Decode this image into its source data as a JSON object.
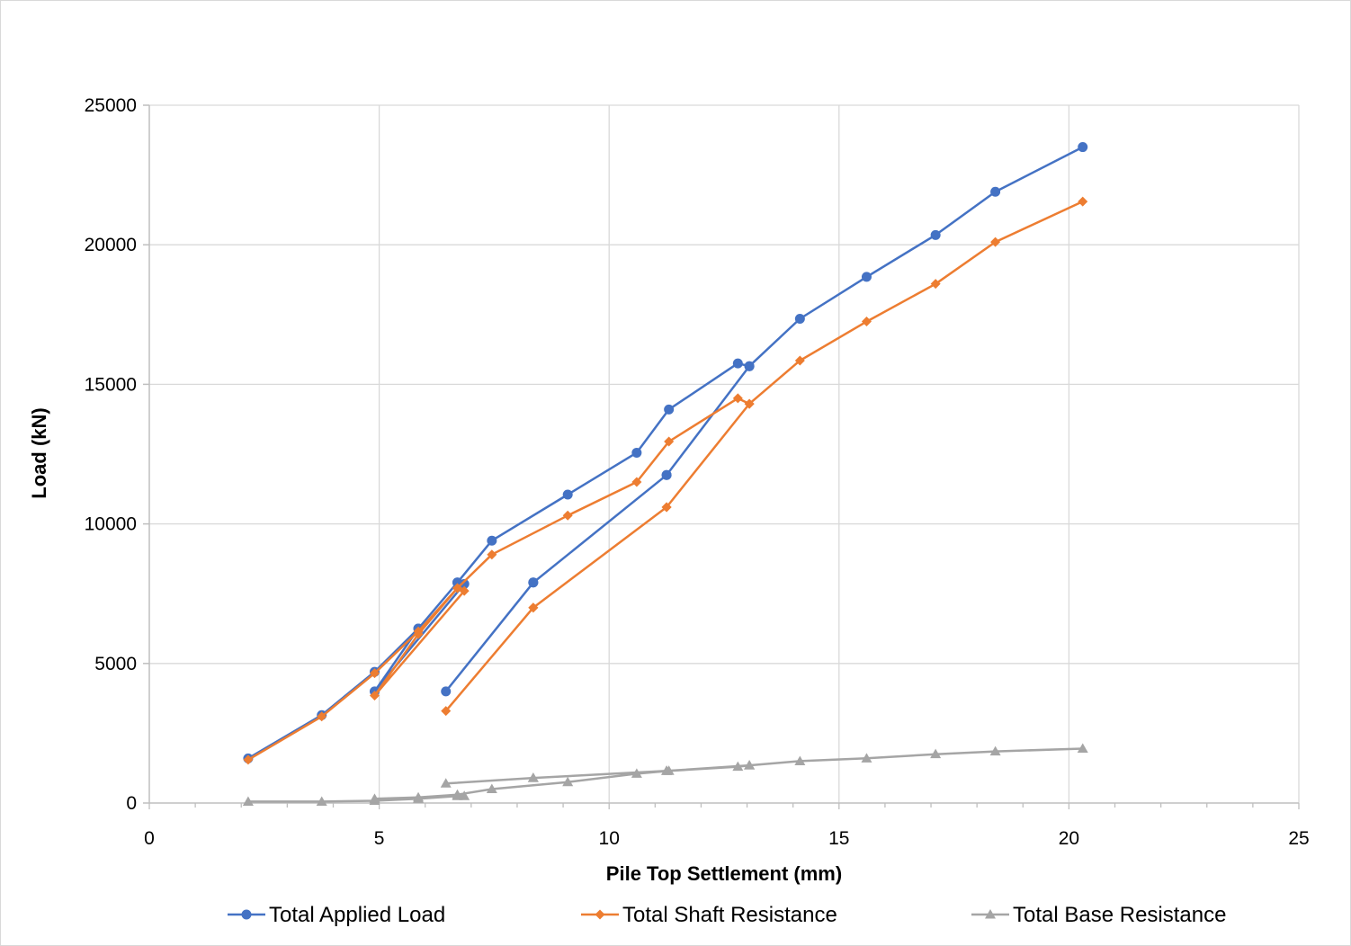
{
  "chart_data": {
    "type": "line",
    "title": "",
    "xlabel": "Pile Top Settlement (mm)",
    "ylabel": "Load (kN)",
    "xlim": [
      0,
      25
    ],
    "ylim": [
      0,
      25000
    ],
    "x_ticks": [
      0,
      5,
      10,
      15,
      20,
      25
    ],
    "y_ticks": [
      0,
      5000,
      10000,
      15000,
      20000,
      25000
    ],
    "x_tick_labels": [
      "0",
      "5",
      "10",
      "15",
      "20",
      "25"
    ],
    "y_tick_labels": [
      "0",
      "5000",
      "10000",
      "15000",
      "20000",
      "25000"
    ],
    "x_minor_step": 1,
    "grid": true,
    "legend_position": "bottom",
    "series": [
      {
        "name": "Total Applied Load",
        "color": "#4472C4",
        "marker": "circle",
        "points": [
          [
            2.15,
            1600
          ],
          [
            3.75,
            3150
          ],
          [
            4.9,
            4700
          ],
          [
            5.85,
            6250
          ],
          [
            6.7,
            7900
          ],
          [
            6.85,
            7850
          ],
          [
            4.9,
            4000
          ],
          [
            5.85,
            6250
          ],
          [
            6.7,
            7900
          ],
          [
            7.45,
            9400
          ],
          [
            9.1,
            11050
          ],
          [
            10.6,
            12550
          ],
          [
            11.3,
            14100
          ],
          [
            12.8,
            15750
          ],
          [
            13.05,
            15650
          ],
          [
            11.25,
            11750
          ],
          [
            8.35,
            7900
          ],
          [
            6.45,
            4000
          ],
          [
            8.35,
            7900
          ],
          [
            11.25,
            11750
          ],
          [
            13.05,
            15650
          ],
          [
            14.15,
            17350
          ],
          [
            15.6,
            18850
          ],
          [
            17.1,
            20350
          ],
          [
            18.4,
            21900
          ],
          [
            20.3,
            23500
          ]
        ]
      },
      {
        "name": "Total Shaft Resistance",
        "color": "#ED7D31",
        "marker": "diamond",
        "points": [
          [
            2.15,
            1550
          ],
          [
            3.75,
            3100
          ],
          [
            4.9,
            4650
          ],
          [
            5.85,
            6150
          ],
          [
            6.7,
            7700
          ],
          [
            6.85,
            7600
          ],
          [
            4.9,
            3850
          ],
          [
            5.85,
            6050
          ],
          [
            6.7,
            7700
          ],
          [
            7.45,
            8900
          ],
          [
            9.1,
            10300
          ],
          [
            10.6,
            11500
          ],
          [
            11.3,
            12950
          ],
          [
            12.8,
            14500
          ],
          [
            13.05,
            14300
          ],
          [
            11.25,
            10600
          ],
          [
            8.35,
            7000
          ],
          [
            6.45,
            3300
          ],
          [
            8.35,
            7000
          ],
          [
            11.25,
            10600
          ],
          [
            13.05,
            14300
          ],
          [
            14.15,
            15850
          ],
          [
            15.6,
            17250
          ],
          [
            17.1,
            18600
          ],
          [
            18.4,
            20100
          ],
          [
            20.3,
            21550
          ]
        ]
      },
      {
        "name": "Total Base Resistance",
        "color": "#A5A5A5",
        "marker": "triangle",
        "points": [
          [
            2.15,
            50
          ],
          [
            3.75,
            50
          ],
          [
            4.9,
            80
          ],
          [
            5.85,
            150
          ],
          [
            6.7,
            250
          ],
          [
            6.85,
            250
          ],
          [
            4.9,
            150
          ],
          [
            5.85,
            200
          ],
          [
            6.7,
            300
          ],
          [
            7.45,
            500
          ],
          [
            9.1,
            750
          ],
          [
            10.6,
            1050
          ],
          [
            11.3,
            1150
          ],
          [
            12.8,
            1300
          ],
          [
            13.05,
            1350
          ],
          [
            11.25,
            1150
          ],
          [
            8.35,
            900
          ],
          [
            6.45,
            700
          ],
          [
            8.35,
            900
          ],
          [
            11.25,
            1150
          ],
          [
            13.05,
            1350
          ],
          [
            14.15,
            1500
          ],
          [
            15.6,
            1600
          ],
          [
            17.1,
            1750
          ],
          [
            18.4,
            1850
          ],
          [
            20.3,
            1950
          ]
        ]
      }
    ]
  }
}
